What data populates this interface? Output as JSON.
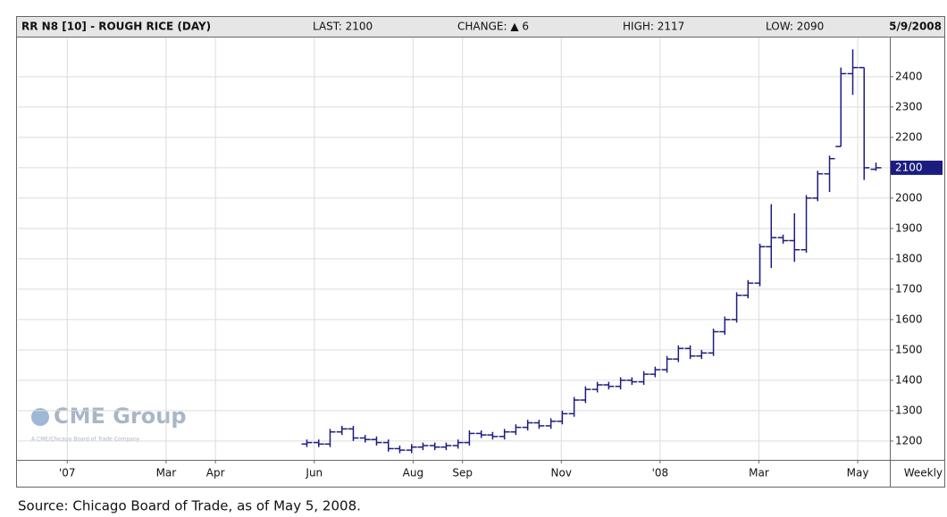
{
  "chart_data": {
    "type": "ohlc",
    "title": "RR N8 [10] - ROUGH RICE (DAY)",
    "stats": [
      "LAST: 2100",
      "CHANGE: ▲ 6",
      "HIGH: 2117",
      "LOW: 2090"
    ],
    "date": "5/9/2008",
    "period": "Weekly",
    "watermark": "CME Group",
    "watermark_sub": "A CME/Chicago Board of Trade Company",
    "source": "Source: Chicago Board of Trade, as of May 5, 2008.",
    "color": "#1c1c80",
    "grid": true,
    "xlim": [
      -1,
      16.65
    ],
    "ylim": [
      1138,
      2529
    ],
    "xticks": [
      {
        "value": 0,
        "label": "'07"
      },
      {
        "value": 2,
        "label": "Mar"
      },
      {
        "value": 3,
        "label": "Apr"
      },
      {
        "value": 5,
        "label": "Jun"
      },
      {
        "value": 7,
        "label": "Aug"
      },
      {
        "value": 8,
        "label": "Sep"
      },
      {
        "value": 10,
        "label": "Nov"
      },
      {
        "value": 12,
        "label": "'08"
      },
      {
        "value": 14,
        "label": "Mar"
      },
      {
        "value": 16,
        "label": "May"
      }
    ],
    "yticks": [
      1200,
      1300,
      1400,
      1500,
      1600,
      1700,
      1800,
      1900,
      2000,
      2100,
      2200,
      2300,
      2400
    ],
    "x": [
      4.85,
      5.09,
      5.32,
      5.56,
      5.79,
      6.03,
      6.26,
      6.5,
      6.73,
      6.97,
      7.2,
      7.44,
      7.67,
      7.91,
      8.14,
      8.38,
      8.61,
      8.85,
      9.08,
      9.32,
      9.55,
      9.79,
      10.02,
      10.26,
      10.49,
      10.73,
      10.96,
      11.2,
      11.43,
      11.67,
      11.9,
      12.14,
      12.37,
      12.61,
      12.84,
      13.08,
      13.31,
      13.55,
      13.78,
      14.02,
      14.25,
      14.49,
      14.72,
      14.96,
      15.19,
      15.43,
      15.66,
      15.9,
      16.13,
      16.37
    ],
    "open": [
      1190,
      1195,
      1190,
      1230,
      1240,
      1210,
      1205,
      1195,
      1175,
      1170,
      1180,
      1185,
      1180,
      1185,
      1195,
      1225,
      1220,
      1215,
      1230,
      1245,
      1260,
      1250,
      1265,
      1290,
      1335,
      1370,
      1385,
      1380,
      1400,
      1395,
      1420,
      1435,
      1470,
      1505,
      1480,
      1490,
      1560,
      1600,
      1680,
      1720,
      1840,
      1870,
      1860,
      1830,
      2000,
      2080,
      2170,
      2410,
      2430,
      2095
    ],
    "high": [
      1205,
      1205,
      1240,
      1250,
      1250,
      1220,
      1215,
      1205,
      1185,
      1190,
      1195,
      1195,
      1195,
      1205,
      1235,
      1235,
      1230,
      1240,
      1255,
      1270,
      1270,
      1275,
      1300,
      1345,
      1380,
      1395,
      1395,
      1410,
      1410,
      1430,
      1445,
      1480,
      1515,
      1515,
      1500,
      1570,
      1610,
      1690,
      1730,
      1850,
      1980,
      1880,
      1950,
      2010,
      2090,
      2140,
      2430,
      2490,
      2430,
      2117
    ],
    "low": [
      1180,
      1180,
      1180,
      1220,
      1200,
      1195,
      1185,
      1165,
      1160,
      1160,
      1170,
      1170,
      1170,
      1175,
      1185,
      1210,
      1205,
      1205,
      1220,
      1235,
      1240,
      1240,
      1255,
      1280,
      1325,
      1360,
      1370,
      1370,
      1385,
      1385,
      1410,
      1425,
      1460,
      1470,
      1470,
      1480,
      1550,
      1590,
      1670,
      1710,
      1770,
      1850,
      1790,
      1820,
      1990,
      2020,
      2170,
      2340,
      2060,
      2090
    ],
    "close": [
      1195,
      1190,
      1230,
      1240,
      1210,
      1205,
      1195,
      1175,
      1170,
      1180,
      1185,
      1180,
      1185,
      1195,
      1225,
      1220,
      1215,
      1230,
      1245,
      1260,
      1250,
      1265,
      1290,
      1335,
      1370,
      1385,
      1380,
      1400,
      1395,
      1420,
      1435,
      1470,
      1505,
      1480,
      1490,
      1560,
      1600,
      1680,
      1720,
      1840,
      1870,
      1860,
      1830,
      2000,
      2080,
      2130,
      2410,
      2430,
      2100,
      2100
    ]
  }
}
